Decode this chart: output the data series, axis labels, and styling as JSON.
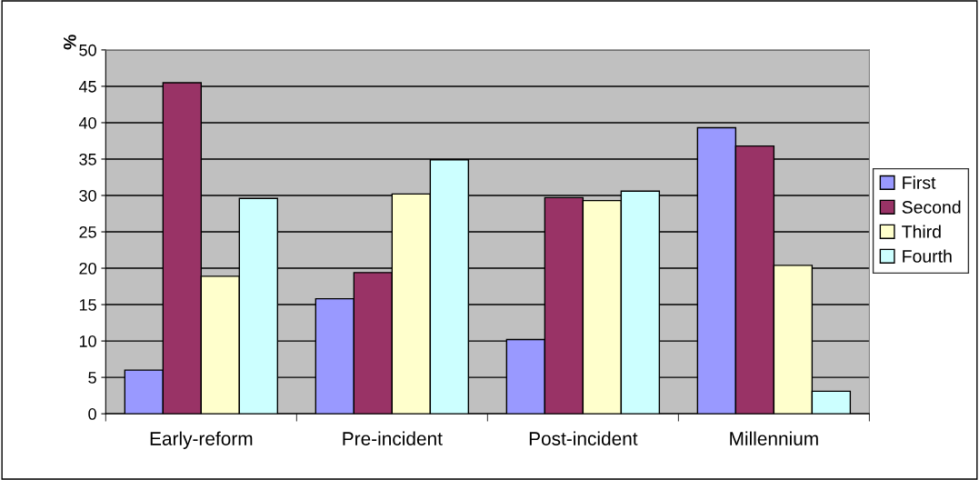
{
  "chart_data": {
    "type": "bar",
    "ylabel": "%",
    "categories": [
      "Early-reform",
      "Pre-incident",
      "Post-incident",
      "Millennium"
    ],
    "series": [
      {
        "name": "First",
        "color": "#9999ff",
        "values": [
          6.0,
          15.8,
          10.2,
          39.3
        ]
      },
      {
        "name": "Second",
        "color": "#993366",
        "values": [
          45.5,
          19.4,
          29.7,
          36.8
        ]
      },
      {
        "name": "Third",
        "color": "#ffffcc",
        "values": [
          18.9,
          30.2,
          29.3,
          20.4
        ]
      },
      {
        "name": "Fourth",
        "color": "#ccffff",
        "values": [
          29.6,
          34.9,
          30.6,
          3.1
        ]
      }
    ],
    "ylim": [
      0,
      50
    ],
    "yticks": [
      0,
      5,
      10,
      15,
      20,
      25,
      30,
      35,
      40,
      45,
      50
    ],
    "grid": "y",
    "legend": "right"
  }
}
